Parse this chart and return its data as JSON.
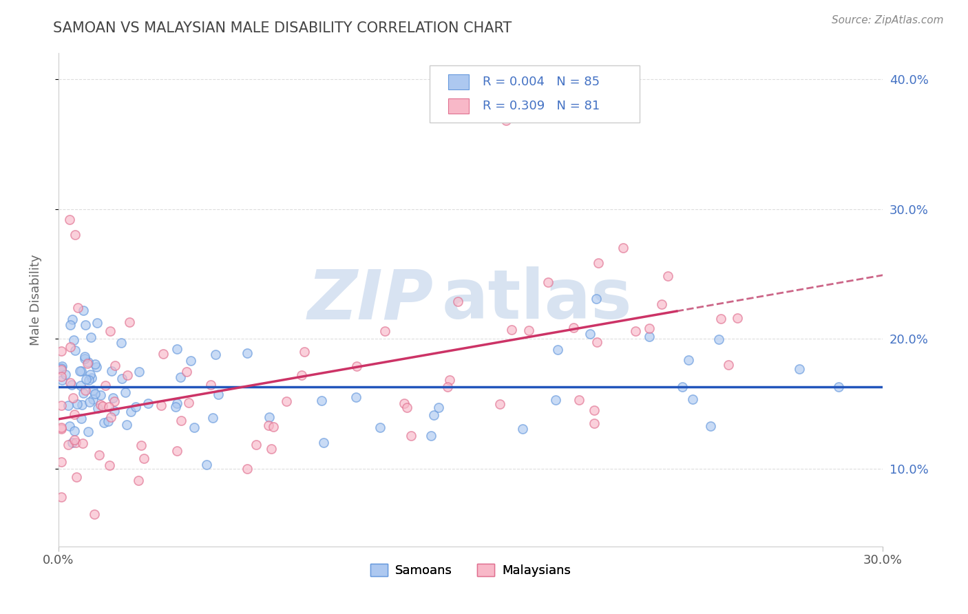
{
  "title": "SAMOAN VS MALAYSIAN MALE DISABILITY CORRELATION CHART",
  "source": "Source: ZipAtlas.com",
  "ylabel": "Male Disability",
  "x_min": 0.0,
  "x_max": 0.3,
  "y_min": 0.04,
  "y_max": 0.42,
  "x_tick_positions": [
    0.0,
    0.3
  ],
  "x_tick_labels": [
    "0.0%",
    "30.0%"
  ],
  "y_tick_positions": [
    0.1,
    0.2,
    0.3,
    0.4
  ],
  "y_tick_labels": [
    "10.0%",
    "20.0%",
    "30.0%",
    "40.0%"
  ],
  "samoan_face_color": "#adc8f0",
  "samoan_edge_color": "#6699dd",
  "malaysian_face_color": "#f8b8c8",
  "malaysian_edge_color": "#e07090",
  "samoan_line_color": "#2255bb",
  "malaysian_line_color": "#cc3366",
  "dash_color": "#cc6688",
  "watermark_zip_color": "#b8cce8",
  "watermark_atlas_color": "#90b0d8",
  "title_color": "#444444",
  "right_axis_color": "#4472c4",
  "legend_text_color": "#4472c4",
  "background_color": "#ffffff",
  "grid_color": "#dddddd",
  "r_samoan": 0.004,
  "n_samoan": 85,
  "r_malaysian": 0.309,
  "n_malaysian": 81,
  "samoan_line_y_intercept": 0.163,
  "samoan_line_slope": 0.0,
  "malaysian_line_y_intercept": 0.138,
  "malaysian_line_slope": 0.37
}
